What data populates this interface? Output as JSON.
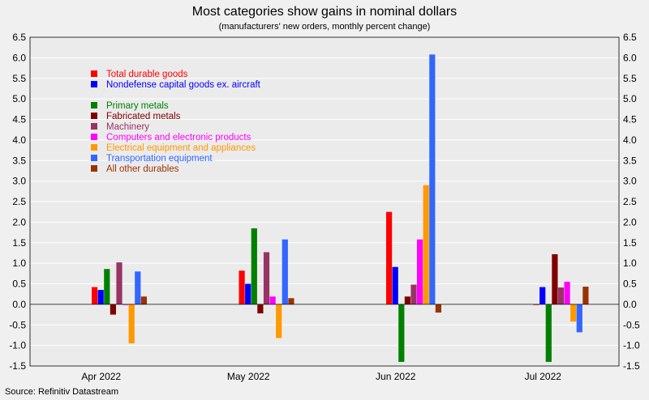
{
  "chart_data": {
    "type": "bar",
    "title": "Most categories show gains in nominal dollars",
    "subtitle": "(manufacturers' new orders, monthly percent change)",
    "source": "Source: Refinitiv Datastream",
    "categories": [
      "Apr 2022",
      "May 2022",
      "Jun 2022",
      "Jul 2022"
    ],
    "ylim": [
      -1.5,
      6.5
    ],
    "yticks": [
      "6.5",
      "6.0",
      "5.5",
      "5.0",
      "4.5",
      "4.0",
      "3.5",
      "3.0",
      "2.5",
      "2.0",
      "1.5",
      "1.0",
      "0.5",
      "0.0",
      "-0.5",
      "-1.0",
      "-1.5"
    ],
    "ytick_values": [
      6.5,
      6.0,
      5.5,
      5.0,
      4.5,
      4.0,
      3.5,
      3.0,
      2.5,
      2.0,
      1.5,
      1.0,
      0.5,
      0.0,
      -0.5,
      -1.0,
      -1.5
    ],
    "grid": true,
    "legend_position": "top-left",
    "series": [
      {
        "name": "Total durable goods",
        "color": "#ff0000",
        "values": [
          0.42,
          0.82,
          2.25,
          0.0
        ]
      },
      {
        "name": "Nondefense capital goods ex. aircraft",
        "color": "#0000ff",
        "values": [
          0.35,
          0.5,
          0.91,
          0.42
        ]
      },
      {
        "name": "Primary metals",
        "color": "#008000",
        "values": [
          0.86,
          1.85,
          -1.4,
          -1.4
        ]
      },
      {
        "name": "Fabricated metals",
        "color": "#800000",
        "values": [
          -0.25,
          -0.22,
          0.19,
          1.22
        ]
      },
      {
        "name": "Machinery",
        "color": "#993366",
        "values": [
          1.02,
          1.27,
          0.48,
          0.41
        ]
      },
      {
        "name": "Computers and electronic products",
        "color": "#ff00ff",
        "values": [
          0.0,
          0.19,
          1.58,
          0.55
        ]
      },
      {
        "name": "Electrical equipment and appliances",
        "color": "#ff9900",
        "values": [
          -0.95,
          -0.82,
          2.9,
          -0.42
        ]
      },
      {
        "name": "Transportation equipment",
        "color": "#3366ff",
        "values": [
          0.8,
          1.58,
          6.08,
          -0.68
        ]
      },
      {
        "name": "All other durables",
        "color": "#993300",
        "values": [
          0.19,
          0.15,
          -0.2,
          0.43
        ]
      }
    ]
  }
}
